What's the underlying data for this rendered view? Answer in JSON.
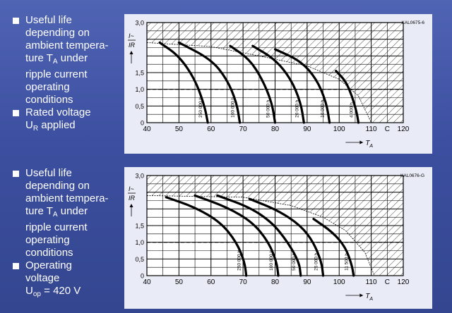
{
  "text_blocks": [
    {
      "bullets": [
        {
          "lines": [
            "Useful life",
            "depending on",
            "ambient tempera-",
            "ture T_A under",
            "ripple current",
            "operating",
            "conditions"
          ]
        },
        {
          "lines": [
            "Rated voltage",
            "U_R applied"
          ]
        }
      ]
    },
    {
      "bullets": [
        {
          "lines": [
            "Useful life",
            "depending on",
            "ambient tempera-",
            "ture T_A under",
            "ripple current",
            "operating",
            "conditions"
          ]
        },
        {
          "lines": [
            "Operating",
            "voltage",
            "U_op = 420 V"
          ]
        }
      ]
    }
  ],
  "colors": {
    "background": "#4558a6",
    "panel": "#e9ecf6",
    "line": "#000000",
    "text": "#ffffff"
  },
  "chart_data": [
    {
      "type": "line",
      "code": "KAL0675-6",
      "ylabel": "I~/I_R",
      "xlabel": "T_A",
      "xunit": "C",
      "xlim": [
        40,
        120
      ],
      "ylim": [
        0,
        3.0
      ],
      "x_ticks": [
        "40",
        "50",
        "60",
        "70",
        "80",
        "90",
        "100",
        "110",
        "C",
        "120"
      ],
      "y_ticks": [
        "0",
        "0,5",
        "1,0",
        "1,5",
        "3,0"
      ],
      "reference_line": 1.0,
      "hatched_region": "above limit curve",
      "limit_curve": [
        [
          40,
          2.4
        ],
        [
          60,
          2.28
        ],
        [
          75,
          2.0
        ],
        [
          90,
          1.7
        ],
        [
          100,
          1.3
        ],
        [
          106,
          0.8
        ],
        [
          110,
          0
        ]
      ],
      "series": [
        {
          "name": "250 000 h",
          "points": [
            [
              44,
              2.4
            ],
            [
              50,
              2.0
            ],
            [
              55,
              1.3
            ],
            [
              58,
              0.5
            ],
            [
              59,
              0
            ]
          ]
        },
        {
          "name": "100 000 h",
          "points": [
            [
              50,
              2.4
            ],
            [
              60,
              1.9
            ],
            [
              65,
              1.3
            ],
            [
              68,
              0.6
            ],
            [
              69,
              0
            ]
          ]
        },
        {
          "name": "50 000 h",
          "points": [
            [
              66,
              2.3
            ],
            [
              72,
              1.9
            ],
            [
              76,
              1.3
            ],
            [
              79,
              0.6
            ],
            [
              80,
              0
            ]
          ]
        },
        {
          "name": "20 000 h",
          "points": [
            [
              73,
              2.3
            ],
            [
              80,
              1.9
            ],
            [
              85,
              1.3
            ],
            [
              88,
              0.6
            ],
            [
              89,
              0
            ]
          ]
        },
        {
          "name": "10 000 h",
          "points": [
            [
              80,
              2.2
            ],
            [
              88,
              1.85
            ],
            [
              93,
              1.3
            ],
            [
              96,
              0.6
            ],
            [
              97,
              0
            ]
          ]
        },
        {
          "name": "4 000 h",
          "points": [
            [
              99,
              1.55
            ],
            [
              102,
              1.25
            ],
            [
              104,
              0.8
            ],
            [
              105.5,
              0.3
            ],
            [
              106,
              0
            ]
          ]
        }
      ]
    },
    {
      "type": "line",
      "code": "KAL0676-G",
      "ylabel": "I~/I_R",
      "xlabel": "T_A",
      "xunit": "C",
      "xlim": [
        40,
        120
      ],
      "ylim": [
        0,
        3.0
      ],
      "x_ticks": [
        "40",
        "50",
        "60",
        "70",
        "80",
        "90",
        "100",
        "110",
        "C",
        "120"
      ],
      "y_ticks": [
        "0",
        "0,5",
        "1,0",
        "1,5",
        "3,0"
      ],
      "reference_line": 1.0,
      "hatched_region": "above limit curve",
      "limit_curve": [
        [
          40,
          2.4
        ],
        [
          70,
          2.35
        ],
        [
          85,
          2.1
        ],
        [
          95,
          1.75
        ],
        [
          102,
          1.35
        ],
        [
          108,
          0.7
        ],
        [
          111,
          0
        ]
      ],
      "series": [
        {
          "name": "250 000 h",
          "points": [
            [
              46,
              2.35
            ],
            [
              55,
              2.05
            ],
            [
              63,
              1.6
            ],
            [
              68,
              1.0
            ],
            [
              70.5,
              0.4
            ],
            [
              71,
              0
            ]
          ]
        },
        {
          "name": "100 000 h",
          "points": [
            [
              55,
              2.4
            ],
            [
              65,
              2.05
            ],
            [
              73,
              1.6
            ],
            [
              78,
              1.0
            ],
            [
              80.5,
              0.4
            ],
            [
              81,
              0
            ]
          ]
        },
        {
          "name": "50 000 h",
          "points": [
            [
              62,
              2.4
            ],
            [
              72,
              2.05
            ],
            [
              79,
              1.6
            ],
            [
              84,
              1.0
            ],
            [
              87.5,
              0.4
            ],
            [
              88,
              0
            ]
          ]
        },
        {
          "name": "25 000 h",
          "points": [
            [
              72,
              2.3
            ],
            [
              81,
              1.95
            ],
            [
              88,
              1.5
            ],
            [
              92,
              1.0
            ],
            [
              94.5,
              0.4
            ],
            [
              95,
              0
            ]
          ]
        },
        {
          "name": "11 500 h",
          "points": [
            [
              92,
              1.7
            ],
            [
              98,
              1.3
            ],
            [
              102,
              0.85
            ],
            [
              104,
              0.3
            ],
            [
              104.5,
              0
            ]
          ]
        }
      ]
    }
  ]
}
